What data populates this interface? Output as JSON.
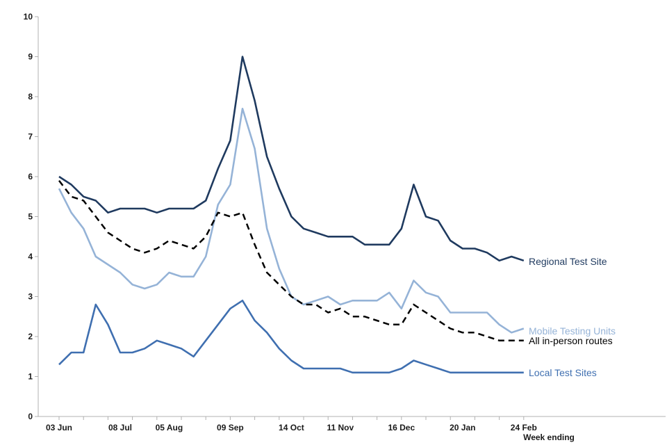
{
  "chart_data": {
    "type": "line",
    "title": "",
    "xlabel": "Week ending",
    "ylabel": "",
    "ylim": [
      0,
      10
    ],
    "y_ticks": [
      "0",
      "1",
      "2",
      "3",
      "4",
      "5",
      "6",
      "7",
      "8",
      "9",
      "10"
    ],
    "x_tick_labels": [
      {
        "index": 0,
        "label": "03 Jun"
      },
      {
        "index": 5,
        "label": "08 Jul"
      },
      {
        "index": 9,
        "label": "05 Aug"
      },
      {
        "index": 14,
        "label": "09 Sep"
      },
      {
        "index": 19,
        "label": "14 Oct"
      },
      {
        "index": 23,
        "label": "11 Nov"
      },
      {
        "index": 28,
        "label": "16 Dec"
      },
      {
        "index": 33,
        "label": "20 Jan"
      },
      {
        "index": 38,
        "label": "24 Feb"
      }
    ],
    "n_points": 39,
    "series": [
      {
        "name": "Regional Test Site",
        "color": "#1f3a5f",
        "dashed": false,
        "values": [
          6.0,
          5.8,
          5.5,
          5.4,
          5.1,
          5.2,
          5.2,
          5.2,
          5.1,
          5.2,
          5.2,
          5.2,
          5.4,
          6.2,
          6.9,
          9.0,
          7.9,
          6.5,
          5.7,
          5.0,
          4.7,
          4.6,
          4.5,
          4.5,
          4.5,
          4.3,
          4.3,
          4.3,
          4.7,
          5.8,
          5.0,
          4.9,
          4.4,
          4.2,
          4.2,
          4.1,
          3.9,
          4.0,
          3.9
        ]
      },
      {
        "name": "Mobile Testing Units",
        "color": "#95b3d7",
        "dashed": false,
        "values": [
          5.7,
          5.1,
          4.7,
          4.0,
          3.8,
          3.6,
          3.3,
          3.2,
          3.3,
          3.6,
          3.5,
          3.5,
          4.0,
          5.3,
          5.8,
          7.7,
          6.7,
          4.7,
          3.7,
          3.0,
          2.8,
          2.9,
          3.0,
          2.8,
          2.9,
          2.9,
          2.9,
          3.1,
          2.7,
          3.4,
          3.1,
          3.0,
          2.6,
          2.6,
          2.6,
          2.6,
          2.3,
          2.1,
          2.2
        ]
      },
      {
        "name": "All in-person routes",
        "color": "#000000",
        "dashed": true,
        "values": [
          5.9,
          5.5,
          5.4,
          5.0,
          4.6,
          4.4,
          4.2,
          4.1,
          4.2,
          4.4,
          4.3,
          4.2,
          4.5,
          5.1,
          5.0,
          5.1,
          4.3,
          3.6,
          3.3,
          3.0,
          2.8,
          2.8,
          2.6,
          2.7,
          2.5,
          2.5,
          2.4,
          2.3,
          2.3,
          2.8,
          2.6,
          2.4,
          2.2,
          2.1,
          2.1,
          2.0,
          1.9,
          1.9,
          1.9
        ]
      },
      {
        "name": "Local Test Sites",
        "color": "#3f6fb0",
        "dashed": false,
        "values": [
          1.3,
          1.6,
          1.6,
          2.8,
          2.3,
          1.6,
          1.6,
          1.7,
          1.9,
          1.8,
          1.7,
          1.5,
          1.9,
          2.3,
          2.7,
          2.9,
          2.4,
          2.1,
          1.7,
          1.4,
          1.2,
          1.2,
          1.2,
          1.2,
          1.1,
          1.1,
          1.1,
          1.1,
          1.2,
          1.4,
          1.3,
          1.2,
          1.1,
          1.1,
          1.1,
          1.1,
          1.1,
          1.1,
          1.1
        ]
      }
    ]
  }
}
